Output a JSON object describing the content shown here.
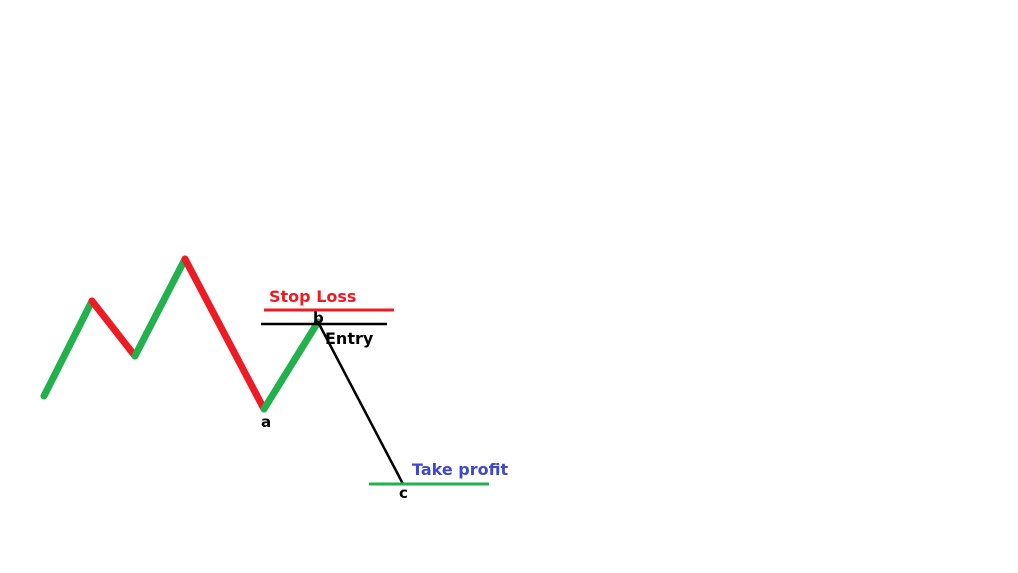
{
  "labels": {
    "stop_loss": "Stop Loss",
    "entry": "Entry",
    "take_profit": "Take profit",
    "point_a": "a",
    "point_b": "b",
    "point_c": "c"
  },
  "colors": {
    "up_leg": "#22b14c",
    "down_leg": "#ed1c24",
    "stop_loss": "#ed1c24",
    "entry": "#000000",
    "take_profit_line": "#22b14c",
    "take_profit_text": "#3f48cc",
    "projection": "#000000",
    "background": "#ffffff"
  },
  "legs": [
    {
      "direction": "up",
      "color_key": "up_leg"
    },
    {
      "direction": "down",
      "color_key": "down_leg"
    },
    {
      "direction": "up",
      "color_key": "up_leg"
    },
    {
      "direction": "down",
      "color_key": "down_leg"
    },
    {
      "direction": "up",
      "color_key": "up_leg"
    }
  ]
}
